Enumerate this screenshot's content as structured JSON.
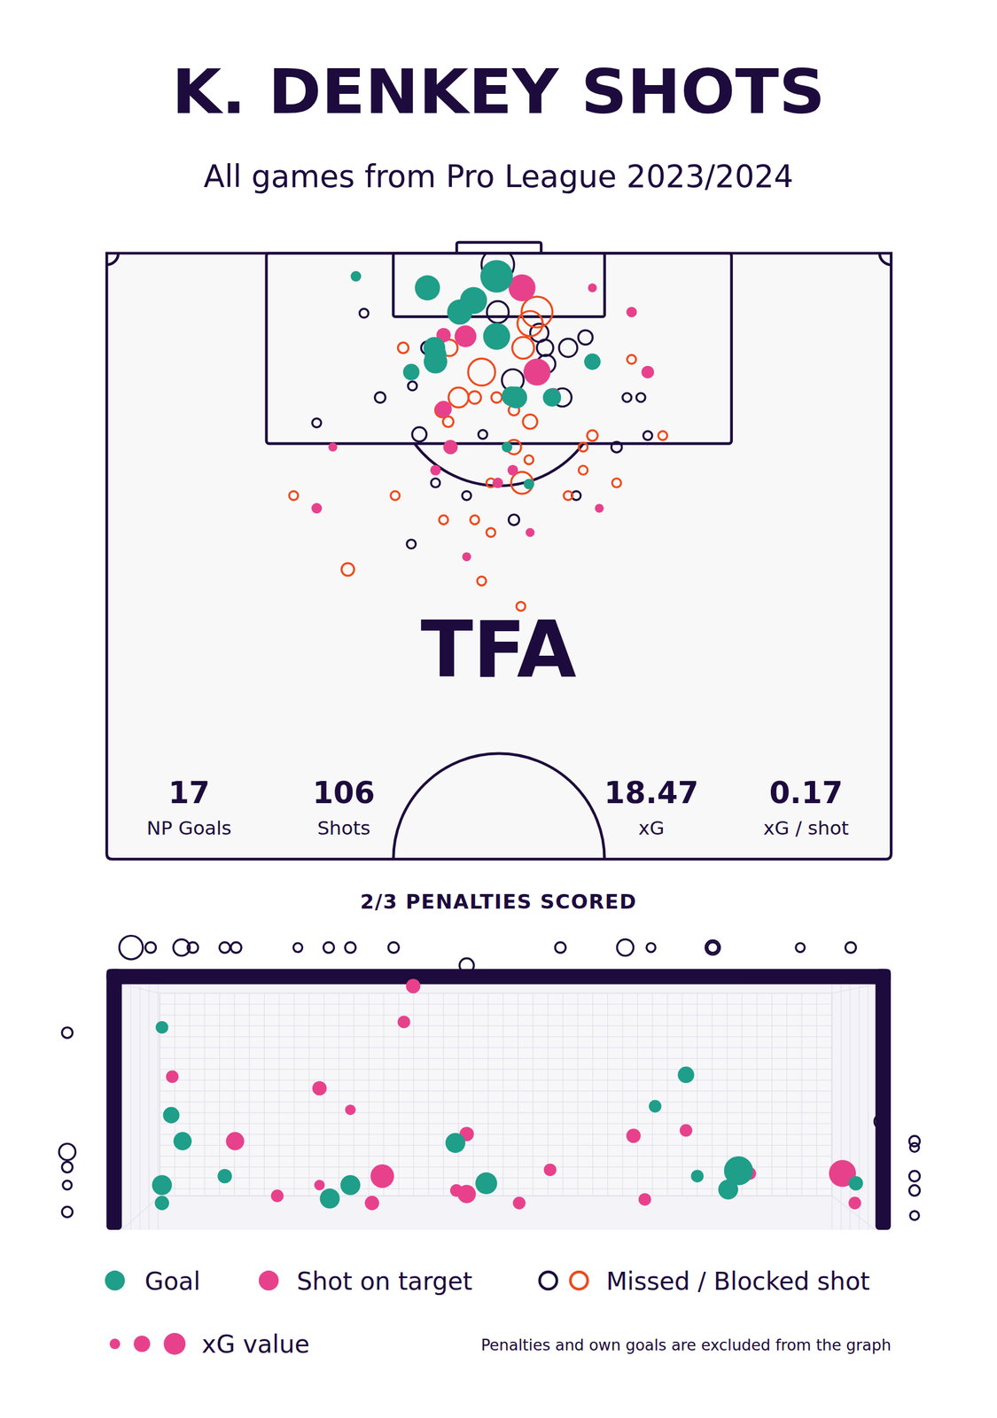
{
  "chart_data": [
    {
      "type": "scatter",
      "title": "K. DENKEY SHOTS",
      "subtitle": "All games from Pro League 2023/2024",
      "xlim": [
        0,
        68
      ],
      "ylim": [
        0,
        52.5
      ],
      "tick_labels": false,
      "grid": false,
      "annotations": [
        "TFA"
      ],
      "stats": [
        {
          "value": 17,
          "label": "NP Goals"
        },
        {
          "value": 106,
          "label": "Shots"
        },
        {
          "value": 18.47,
          "label": "xG"
        },
        {
          "value": 0.17,
          "label": "xG / shot"
        }
      ],
      "size_legend": {
        "label": "xG value",
        "values": [
          0.07,
          0.17,
          0.3
        ]
      },
      "series": [
        {
          "name": "Goal",
          "color": "#1f9e89",
          "marker": "circle",
          "x": [
            21.6,
            27.8,
            33.8,
            31.8,
            30.6,
            33.8,
            28.4,
            28.5,
            26.4,
            42.1,
            35.5,
            38.6,
            34.7,
            36.6,
            35.1,
            28.5
          ],
          "y": [
            2.0,
            3.0,
            2.0,
            4.1,
            5.1,
            7.2,
            8.2,
            9.4,
            10.3,
            9.4,
            12.5,
            12.5,
            16.8,
            20.0,
            12.4,
            8.8
          ],
          "xg": [
            0.07,
            0.4,
            0.67,
            0.46,
            0.4,
            0.46,
            0.3,
            0.35,
            0.17,
            0.17,
            0.3,
            0.21,
            0.07,
            0.07,
            0.25,
            0.3
          ]
        },
        {
          "name": "Shot on target",
          "color": "#e8418c",
          "marker": "circle",
          "x": [
            36.0,
            42.1,
            45.5,
            31.1,
            29.2,
            37.3,
            46.9,
            29.2,
            29.8,
            19.6,
            28.5,
            33.9,
            35.2,
            18.2,
            42.7,
            36.7,
            31.2,
            38.7
          ],
          "y": [
            3.0,
            3.0,
            5.1,
            7.2,
            7.1,
            10.3,
            10.3,
            13.5,
            16.8,
            16.8,
            18.8,
            19.9,
            18.8,
            22.1,
            22.1,
            24.2,
            26.3,
            12.3
          ],
          "xg": [
            0.46,
            0.05,
            0.07,
            0.3,
            0.13,
            0.46,
            0.1,
            0.17,
            0.13,
            0.05,
            0.07,
            0.07,
            0.07,
            0.07,
            0.05,
            0.05,
            0.05,
            0.13
          ]
        },
        {
          "name": "Missed / Blocked shot",
          "marker": "ring",
          "colors": [
            "#1d0b3d",
            "#1d0b3d",
            "#1d0b3d",
            "#1d0b3d",
            "#1d0b3d",
            "#1d0b3d",
            "#1d0b3d",
            "#1d0b3d",
            "#1d0b3d",
            "#1d0b3d",
            "#1d0b3d",
            "#1d0b3d",
            "#1d0b3d",
            "#1d0b3d",
            "#1d0b3d",
            "#1d0b3d",
            "#1d0b3d",
            "#1d0b3d",
            "#1d0b3d",
            "#1d0b3d",
            "#1d0b3d",
            "#1d0b3d",
            "#1d0b3d",
            "#1d0b3d",
            "#1d0b3d",
            "#f04a1e",
            "#f04a1e",
            "#f04a1e",
            "#f04a1e",
            "#f04a1e",
            "#f04a1e",
            "#f04a1e",
            "#f04a1e",
            "#f04a1e",
            "#f04a1e",
            "#f04a1e",
            "#f04a1e",
            "#f04a1e",
            "#f04a1e",
            "#f04a1e",
            "#f04a1e",
            "#f04a1e",
            "#f04a1e",
            "#f04a1e",
            "#f04a1e",
            "#f04a1e",
            "#f04a1e",
            "#f04a1e",
            "#f04a1e",
            "#f04a1e",
            "#f04a1e",
            "#f04a1e",
            "#f04a1e",
            "#f04a1e",
            "#f04a1e",
            "#f04a1e",
            "#f04a1e"
          ],
          "x": [
            33.9,
            22.3,
            33.9,
            37.5,
            40.0,
            41.5,
            27.8,
            38.0,
            38.1,
            35.2,
            39.5,
            23.7,
            26.5,
            45.1,
            46.3,
            18.2,
            32.6,
            27.1,
            44.2,
            46.9,
            28.5,
            31.2,
            40.7,
            35.3,
            26.4,
            37.3,
            36.7,
            36.1,
            25.7,
            29.7,
            32.5,
            33.8,
            30.5,
            31.9,
            29.1,
            29.6,
            36.7,
            35.3,
            42.1,
            41.3,
            48.2,
            35.3,
            36.6,
            36.0,
            41.3,
            44.2,
            33.3,
            40.0,
            16.2,
            25.0,
            29.2,
            31.9,
            33.3,
            20.9,
            32.5,
            35.9,
            45.5
          ],
          "y": [
            1.0,
            5.2,
            5.1,
            6.9,
            8.2,
            7.3,
            8.2,
            8.2,
            9.6,
            11.0,
            12.5,
            12.5,
            11.5,
            12.5,
            12.5,
            14.7,
            15.7,
            15.7,
            16.8,
            15.8,
            19.9,
            21.0,
            21.0,
            23.1,
            25.2,
            5.1,
            6.1,
            8.2,
            8.2,
            8.2,
            10.3,
            12.5,
            12.5,
            12.5,
            13.6,
            14.6,
            14.6,
            13.6,
            15.8,
            16.8,
            15.8,
            16.8,
            17.9,
            19.9,
            18.8,
            19.9,
            19.9,
            21.0,
            21.0,
            21.0,
            23.1,
            23.1,
            24.2,
            27.4,
            28.4,
            30.6,
            9.2
          ],
          "xg": [
            0.67,
            0.05,
            0.3,
            0.21,
            0.21,
            0.13,
            0.1,
            0.17,
            0.21,
            0.3,
            0.21,
            0.07,
            0.05,
            0.05,
            0.05,
            0.05,
            0.05,
            0.13,
            0.07,
            0.05,
            0.05,
            0.05,
            0.05,
            0.07,
            0.05,
            0.6,
            0.4,
            0.3,
            0.07,
            0.17,
            0.46,
            0.07,
            0.25,
            0.1,
            0.13,
            0.07,
            0.13,
            0.07,
            0.07,
            0.05,
            0.05,
            0.13,
            0.05,
            0.3,
            0.05,
            0.05,
            0.05,
            0.05,
            0.05,
            0.05,
            0.05,
            0.05,
            0.05,
            0.1,
            0.05,
            0.05,
            0.05
          ]
        }
      ]
    },
    {
      "type": "scatter",
      "title": "2/3 PENALTIES SCORED",
      "xlim": [
        -0.7,
        8.0
      ],
      "ylim": [
        -0.3,
        3.1
      ],
      "tick_labels": false,
      "grid": false,
      "annotations": [
        "Penalties and own goals are excluded from the graph"
      ],
      "series": [
        {
          "color": "#1f9e89",
          "marker": "circle",
          "x": [
            0.39,
            0.48,
            0.59,
            0.39,
            0.39,
            1.0,
            2.02,
            2.22,
            3.24,
            3.54,
            5.48,
            5.18,
            5.59,
            5.99,
            5.89,
            7.13
          ],
          "y": [
            1.96,
            0.98,
            0.69,
            0.2,
            0,
            0.3,
            0.05,
            0.2,
            0.67,
            0.22,
            1.43,
            1.08,
            0.3,
            0.36,
            0.15,
            0.22
          ],
          "xg": [
            0.1,
            0.17,
            0.21,
            0.25,
            0.13,
            0.13,
            0.25,
            0.25,
            0.25,
            0.3,
            0.17,
            0.1,
            0.1,
            0.53,
            0.25,
            0.13
          ]
        },
        {
          "color": "#e8418c",
          "marker": "circle",
          "x": [
            2.83,
            2.74,
            0.49,
            1.92,
            2.22,
            1.1,
            3.35,
            4.16,
            4.97,
            5.48,
            2.53,
            1.92,
            1.51,
            2.43,
            3.25,
            3.35,
            3.86,
            5.08,
            6.1,
            7.0,
            7.12
          ],
          "y": [
            2.42,
            2.02,
            1.41,
            1.28,
            1.04,
            0.69,
            0.77,
            0.37,
            0.75,
            0.81,
            0.3,
            0.2,
            0.08,
            0,
            0.14,
            0.1,
            0,
            0.04,
            0.33,
            0.33,
            0
          ],
          "xg": [
            0.13,
            0.1,
            0.1,
            0.13,
            0.07,
            0.21,
            0.13,
            0.1,
            0.13,
            0.1,
            0.35,
            0.07,
            0.1,
            0.13,
            0.1,
            0.21,
            0.1,
            0.1,
            0.1,
            0.46,
            0.1
          ]
        },
        {
          "color": "#1d0b3d",
          "marker": "ring",
          "x": [
            0.09,
            0.28,
            0.58,
            0.69,
            1.0,
            1.11,
            1.71,
            2.01,
            2.22,
            2.64,
            3.35,
            4.26,
            4.89,
            5.14,
            5.74,
            5.74,
            6.59,
            7.08,
            -0.53,
            -0.53,
            -0.53,
            -0.53,
            -0.53,
            7.38,
            7.7,
            7.7,
            7.7,
            7.7,
            7.7
          ],
          "y": [
            2.85,
            2.85,
            2.85,
            2.85,
            2.85,
            2.85,
            2.85,
            2.85,
            2.85,
            2.85,
            2.65,
            2.85,
            2.85,
            2.85,
            2.85,
            2.85,
            2.85,
            2.85,
            1.9,
            0.57,
            0.4,
            0.2,
            -0.1,
            0.91,
            0.69,
            0.62,
            0.3,
            0.14,
            -0.14
          ],
          "xg": [
            0.35,
            0.07,
            0.17,
            0.07,
            0.07,
            0.07,
            0.05,
            0.07,
            0.07,
            0.07,
            0.13,
            0.07,
            0.17,
            0.05,
            0.13,
            0.07,
            0.05,
            0.07,
            0.07,
            0.17,
            0.07,
            0.05,
            0.07,
            0.13,
            0.07,
            0.05,
            0.07,
            0.07,
            0.05
          ]
        }
      ]
    }
  ]
}
